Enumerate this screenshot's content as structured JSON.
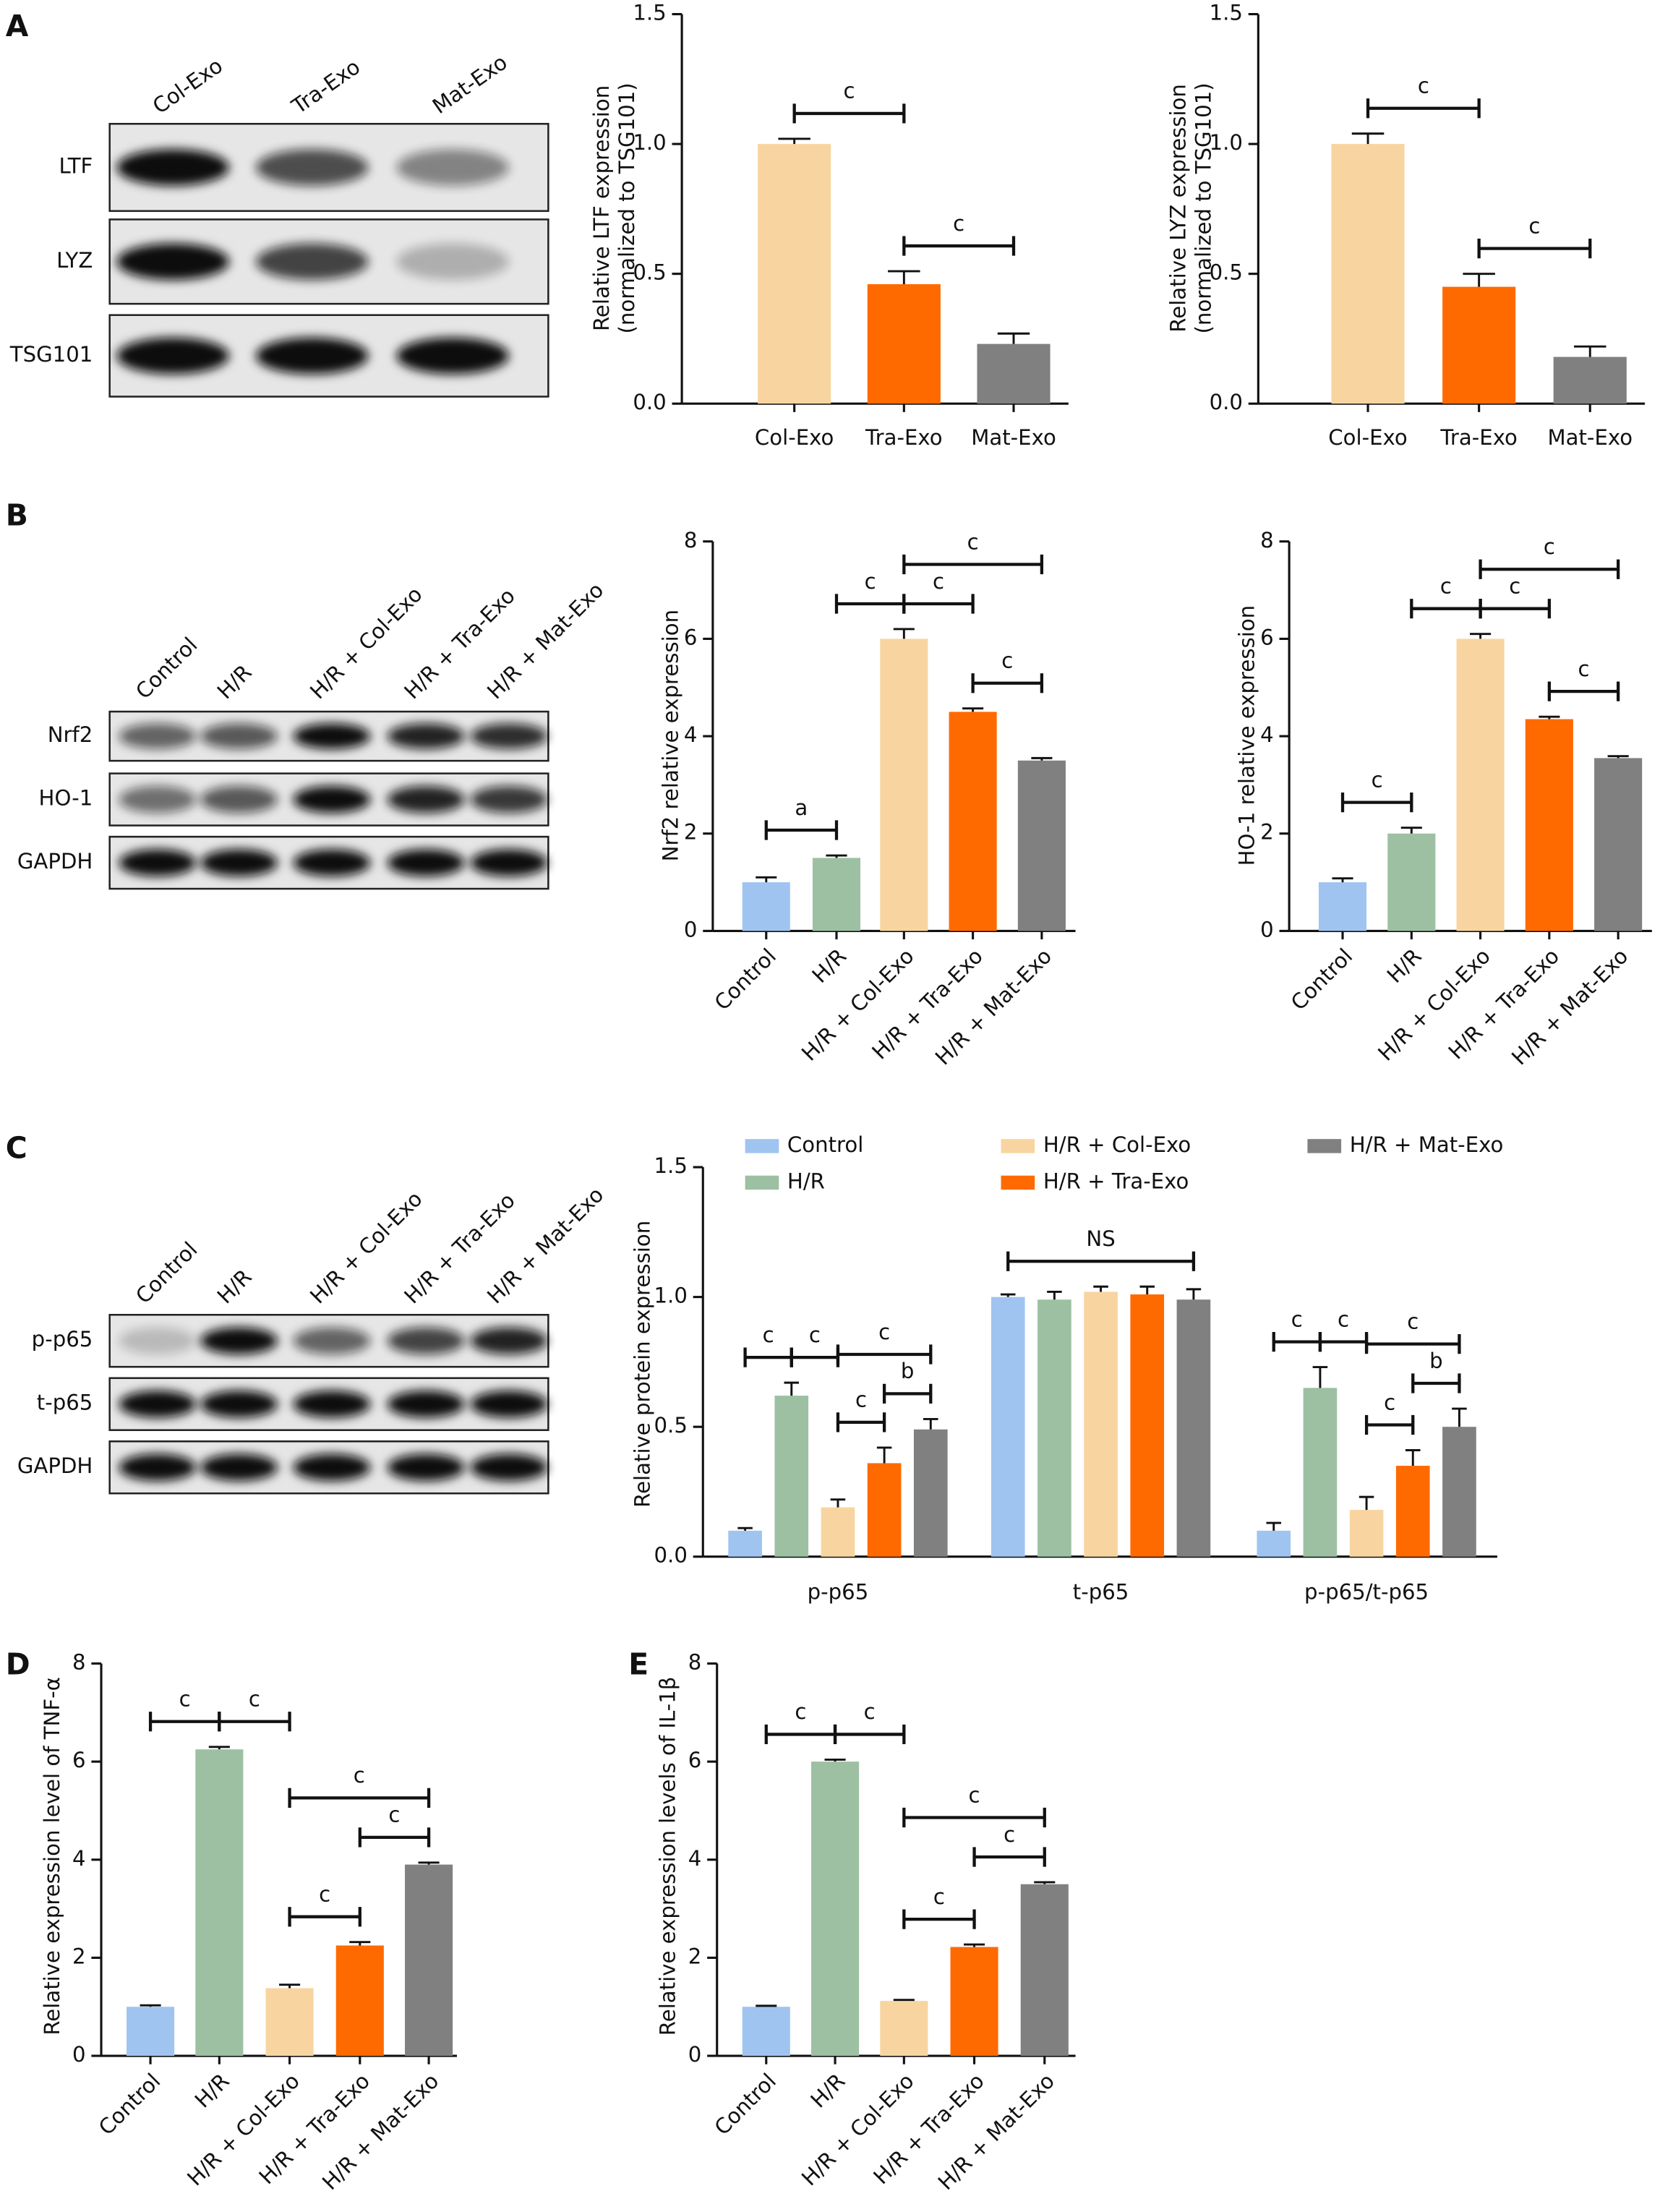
{
  "panel_labels": [
    "A",
    "B",
    "C",
    "D",
    "E"
  ],
  "blots": [
    {
      "lanes": [
        "Col-Exo",
        "Tra-Exo",
        "Mat-Exo"
      ],
      "rows": [
        "LTF",
        "LYZ",
        "TSG101"
      ]
    },
    {
      "lanes": [
        "Control",
        "H/R",
        "H/R + Col-Exo",
        "H/R + Tra-Exo",
        "H/R + Mat-Exo"
      ],
      "rows": [
        "Nrf2",
        "HO-1",
        "GAPDH"
      ]
    },
    {
      "lanes": [
        "Control",
        "H/R",
        "H/R + Col-Exo",
        "H/R + Tra-Exo",
        "H/R + Mat-Exo"
      ],
      "rows": [
        "p-p65",
        "t-p65",
        "GAPDH"
      ]
    }
  ],
  "chart_data": [
    {
      "type": "bar",
      "ylabel": [
        "Relative LTF expression",
        "(normalized to TSG101)"
      ],
      "categories": [
        "Col-Exo",
        "Tra-Exo",
        "Mat-Exo"
      ],
      "values": [
        1.0,
        0.46,
        0.23
      ],
      "errors": [
        0.02,
        0.05,
        0.04
      ],
      "colors": [
        "#f8d5a0",
        "#ff6a00",
        "#808080"
      ],
      "ylim": [
        0,
        1.5
      ],
      "yticks": [
        {
          "value": 0,
          "label": "0.0"
        },
        0.5,
        {
          "value": 1,
          "label": "1.0"
        },
        1.5
      ],
      "brackets": [
        {
          "from": 0,
          "to": 1,
          "label": "c"
        },
        {
          "from": 1,
          "to": 2,
          "label": "c"
        }
      ]
    },
    {
      "type": "bar",
      "ylabel": [
        "Relative LYZ expression",
        "(normalized to TSG101)"
      ],
      "categories": [
        "Col-Exo",
        "Tra-Exo",
        "Mat-Exo"
      ],
      "values": [
        1.0,
        0.45,
        0.18
      ],
      "errors": [
        0.04,
        0.05,
        0.04
      ],
      "colors": [
        "#f8d5a0",
        "#ff6a00",
        "#808080"
      ],
      "ylim": [
        0,
        1.5
      ],
      "yticks": [
        {
          "value": 0,
          "label": "0.0"
        },
        0.5,
        {
          "value": 1,
          "label": "1.0"
        },
        1.5
      ],
      "brackets": [
        {
          "from": 0,
          "to": 1,
          "label": "c"
        },
        {
          "from": 1,
          "to": 2,
          "label": "c"
        }
      ]
    },
    {
      "type": "bar",
      "ylabel": [
        "Nrf2 relative expression"
      ],
      "categories": [
        "Control",
        "H/R",
        "H/R + Col-Exo",
        "H/R + Tra-Exo",
        "H/R + Mat-Exo"
      ],
      "values": [
        1.0,
        1.5,
        6.0,
        4.5,
        3.5
      ],
      "errors": [
        0.1,
        0.05,
        0.2,
        0.07,
        0.05
      ],
      "colors": [
        "#a0c4f0",
        "#9dc0a3",
        "#f8d5a0",
        "#ff6a00",
        "#808080"
      ],
      "ylim": [
        0,
        8
      ],
      "yticks": [
        0,
        2,
        4,
        6,
        8
      ],
      "brackets": [
        {
          "from": 0,
          "to": 1,
          "label": "a"
        },
        {
          "from": 1,
          "to": 2,
          "label": "c"
        },
        {
          "from": 2,
          "to": 4,
          "label": "c"
        },
        {
          "from": 2,
          "to": 3,
          "label": "c"
        },
        {
          "from": 3,
          "to": 4,
          "label": "c"
        }
      ]
    },
    {
      "type": "bar",
      "ylabel": [
        "HO-1 relative expression"
      ],
      "categories": [
        "Control",
        "H/R",
        "H/R + Col-Exo",
        "H/R + Tra-Exo",
        "H/R + Mat-Exo"
      ],
      "values": [
        1.0,
        2.0,
        6.0,
        4.35,
        3.55
      ],
      "errors": [
        0.08,
        0.12,
        0.1,
        0.05,
        0.04
      ],
      "colors": [
        "#a0c4f0",
        "#9dc0a3",
        "#f8d5a0",
        "#ff6a00",
        "#808080"
      ],
      "ylim": [
        0,
        8
      ],
      "yticks": [
        0,
        2,
        4,
        6,
        8
      ],
      "brackets": [
        {
          "from": 0,
          "to": 1,
          "label": "c"
        },
        {
          "from": 1,
          "to": 2,
          "label": "c"
        },
        {
          "from": 2,
          "to": 4,
          "label": "c"
        },
        {
          "from": 2,
          "to": 3,
          "label": "c"
        },
        {
          "from": 3,
          "to": 4,
          "label": "c"
        }
      ]
    },
    {
      "type": "bar",
      "ylabel": [
        "Relative protein expression"
      ],
      "categories": [
        "p-p65",
        "t-p65",
        "p-p65/t-p65"
      ],
      "series": [
        {
          "name": "Control",
          "color": "#a0c4f0",
          "values": [
            0.1,
            1.0,
            0.1
          ],
          "errors": [
            0.01,
            0.01,
            0.03
          ]
        },
        {
          "name": "H/R",
          "color": "#9dc0a3",
          "values": [
            0.62,
            0.99,
            0.65
          ],
          "errors": [
            0.05,
            0.03,
            0.08
          ]
        },
        {
          "name": "H/R + Col-Exo",
          "color": "#f8d5a0",
          "values": [
            0.19,
            1.02,
            0.18
          ],
          "errors": [
            0.03,
            0.02,
            0.05
          ]
        },
        {
          "name": "H/R + Tra-Exo",
          "color": "#ff6a00",
          "values": [
            0.36,
            1.01,
            0.35
          ],
          "errors": [
            0.06,
            0.03,
            0.06
          ]
        },
        {
          "name": "H/R + Mat-Exo",
          "color": "#808080",
          "values": [
            0.49,
            0.99,
            0.5
          ],
          "errors": [
            0.04,
            0.04,
            0.07
          ]
        }
      ],
      "ylim": [
        0,
        1.5
      ],
      "yticks": [
        {
          "value": 0,
          "label": "0.0"
        },
        0.5,
        {
          "value": 1,
          "label": "1.0"
        },
        1.5
      ],
      "brackets": [
        {
          "group": 0,
          "from": 0,
          "to": 1,
          "label": "c"
        },
        {
          "group": 0,
          "from": 1,
          "to": 2,
          "label": "c"
        },
        {
          "group": 0,
          "from": 2,
          "to": 4,
          "label": "c"
        },
        {
          "group": 0,
          "from": 2,
          "to": 3,
          "label": "c"
        },
        {
          "group": 0,
          "from": 3,
          "to": 4,
          "label": "b"
        },
        {
          "group": 1,
          "from": 0,
          "to": 4,
          "label": "NS"
        },
        {
          "group": 2,
          "from": 0,
          "to": 1,
          "label": "c"
        },
        {
          "group": 2,
          "from": 1,
          "to": 2,
          "label": "c"
        },
        {
          "group": 2,
          "from": 2,
          "to": 4,
          "label": "c"
        },
        {
          "group": 2,
          "from": 2,
          "to": 3,
          "label": "c"
        },
        {
          "group": 2,
          "from": 3,
          "to": 4,
          "label": "b"
        }
      ]
    },
    {
      "type": "bar",
      "ylabel": [
        "Relative expression level of TNF-α"
      ],
      "categories": [
        "Control",
        "H/R",
        "H/R + Col-Exo",
        "H/R + Tra-Exo",
        "H/R + Mat-Exo"
      ],
      "values": [
        1.0,
        6.25,
        1.38,
        2.25,
        3.9
      ],
      "errors": [
        0.03,
        0.05,
        0.07,
        0.07,
        0.04
      ],
      "colors": [
        "#a0c4f0",
        "#9dc0a3",
        "#f8d5a0",
        "#ff6a00",
        "#808080"
      ],
      "ylim": [
        0,
        8
      ],
      "yticks": [
        0,
        2,
        4,
        6,
        8
      ],
      "brackets": [
        {
          "from": 0,
          "to": 1,
          "label": "c"
        },
        {
          "from": 1,
          "to": 2,
          "label": "c"
        },
        {
          "from": 2,
          "to": 4,
          "label": "c"
        },
        {
          "from": 3,
          "to": 4,
          "label": "c"
        },
        {
          "from": 2,
          "to": 3,
          "label": "c"
        }
      ]
    },
    {
      "type": "bar",
      "ylabel": [
        "Relative expression levels of IL-1β"
      ],
      "categories": [
        "Control",
        "H/R",
        "H/R + Col-Exo",
        "H/R + Tra-Exo",
        "H/R + Mat-Exo"
      ],
      "values": [
        1.0,
        6.0,
        1.12,
        2.22,
        3.5
      ],
      "errors": [
        0.02,
        0.04,
        0.02,
        0.05,
        0.04
      ],
      "colors": [
        "#a0c4f0",
        "#9dc0a3",
        "#f8d5a0",
        "#ff6a00",
        "#808080"
      ],
      "ylim": [
        0,
        8
      ],
      "yticks": [
        0,
        2,
        4,
        6,
        8
      ],
      "brackets": [
        {
          "from": 0,
          "to": 1,
          "label": "c"
        },
        {
          "from": 1,
          "to": 2,
          "label": "c"
        },
        {
          "from": 2,
          "to": 4,
          "label": "c"
        },
        {
          "from": 3,
          "to": 4,
          "label": "c"
        },
        {
          "from": 2,
          "to": 3,
          "label": "c"
        }
      ]
    }
  ]
}
